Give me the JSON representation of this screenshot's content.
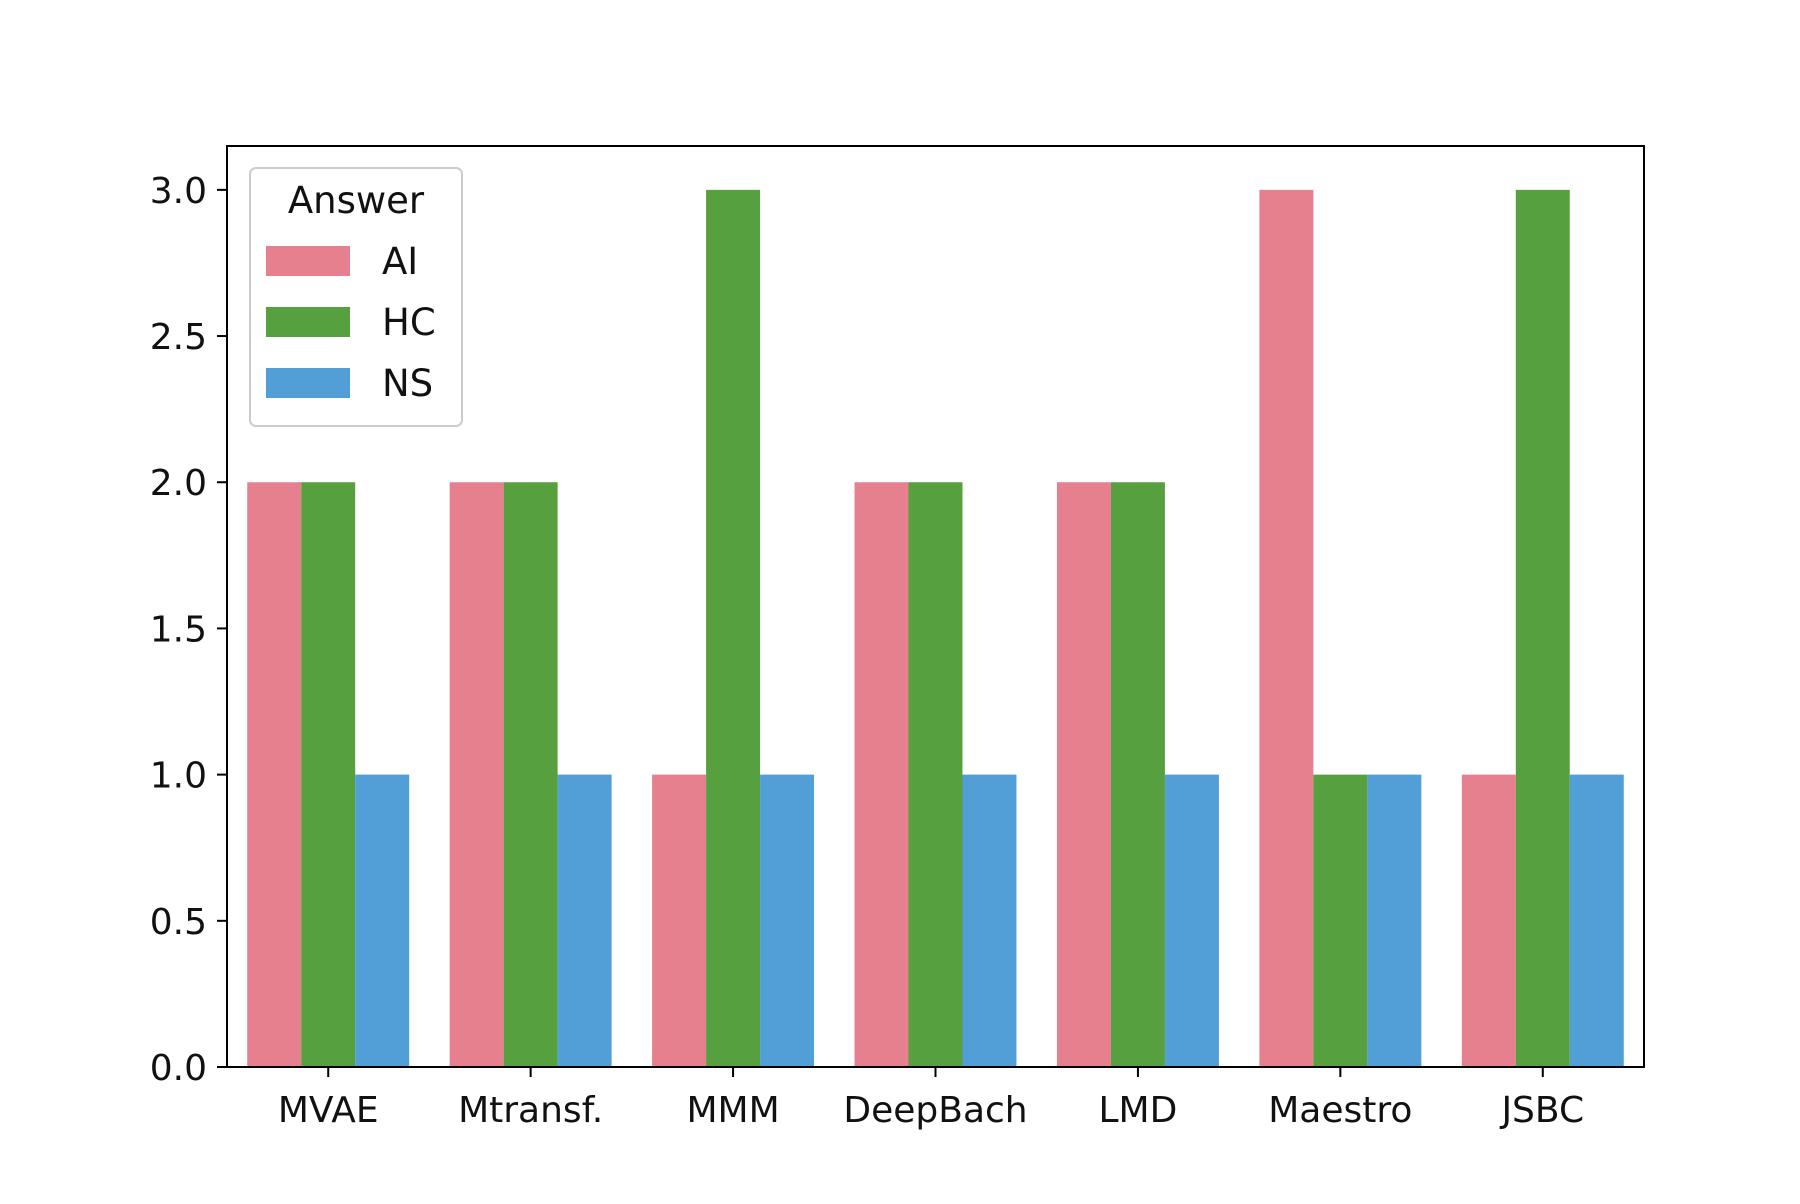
{
  "chart_data": {
    "type": "bar",
    "title": "",
    "xlabel": "",
    "ylabel": "",
    "categories": [
      "MVAE",
      "Mtransf.",
      "MMM",
      "DeepBach",
      "LMD",
      "Maestro",
      "JSBC"
    ],
    "series": [
      {
        "name": "AI",
        "color": "#e6808f",
        "values": [
          2,
          2,
          1,
          2,
          2,
          3,
          1
        ]
      },
      {
        "name": "HC",
        "color": "#56a03f",
        "values": [
          2,
          2,
          3,
          2,
          2,
          1,
          3
        ]
      },
      {
        "name": "NS",
        "color": "#519fd6",
        "values": [
          1,
          1,
          1,
          1,
          1,
          1,
          1
        ]
      }
    ],
    "ylim": [
      0,
      3.15
    ],
    "yticks": [
      0.0,
      0.5,
      1.0,
      1.5,
      2.0,
      2.5,
      3.0
    ],
    "ytick_labels": [
      "0.0",
      "0.5",
      "1.0",
      "1.5",
      "2.0",
      "2.5",
      "3.0"
    ],
    "grid": false,
    "legend": {
      "title": "Answer",
      "placement": "top-left"
    }
  }
}
